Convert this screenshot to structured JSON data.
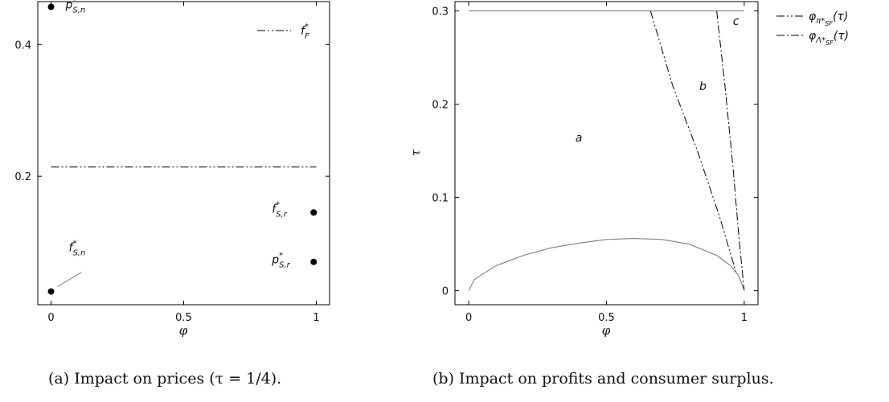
{
  "chart_data": [
    {
      "type": "scatter",
      "caption": "(a) Impact on prices (τ = 1/4).",
      "xlabel": "φ",
      "ylabel": "",
      "xlim": [
        -0.05,
        1.05
      ],
      "ylim": [
        0.005,
        0.465
      ],
      "xticks": [
        "0",
        "0.5",
        "1"
      ],
      "yticks": [
        "0.2",
        "0.4"
      ],
      "points": [
        {
          "label": "p*_{S,n}",
          "x": 0,
          "y": 0.457
        },
        {
          "label": "f*_{S,n}",
          "x": 0,
          "y": 0.025
        },
        {
          "label": "f*_{S,r}",
          "x": 0.99,
          "y": 0.145
        },
        {
          "label": "p*_{S,r}",
          "x": 0.99,
          "y": 0.07
        }
      ],
      "series": [
        {
          "name": "f*_F",
          "style": "dash-dot-dot",
          "x": [
            0,
            1
          ],
          "y": [
            0.214,
            0.214
          ]
        }
      ],
      "legend": "top-right",
      "grid": false
    },
    {
      "type": "line",
      "caption": "(b) Impact on profits and consumer surplus.",
      "xlabel": "φ",
      "ylabel": "τ",
      "xlim": [
        -0.05,
        1.05
      ],
      "ylim": [
        -0.015,
        0.31
      ],
      "xticks": [
        "0",
        "0.5",
        "1"
      ],
      "yticks": [
        "0",
        "0.1",
        "0.2",
        "0.3"
      ],
      "series": [
        {
          "name": "φ_{π*_SF}(τ)",
          "style": "dash-dot-dot",
          "x": [
            0.66,
            0.74,
            0.83,
            0.91,
            0.97
          ],
          "y": [
            0.3,
            0.22,
            0.15,
            0.08,
            0.02
          ]
        },
        {
          "name": "φ_{Λ*_SF}(τ)",
          "style": "dash-dot",
          "x": [
            0.9,
            0.93,
            0.96,
            0.98,
            1.0
          ],
          "y": [
            0.3,
            0.22,
            0.13,
            0.06,
            0.0
          ]
        },
        {
          "name": "boundary-lower",
          "style": "solid",
          "x": [
            0,
            0.02,
            0.1,
            0.2,
            0.3,
            0.4,
            0.5,
            0.6,
            0.7,
            0.8,
            0.9,
            0.95,
            0.98,
            1.0
          ],
          "y": [
            0,
            0.012,
            0.027,
            0.038,
            0.046,
            0.051,
            0.055,
            0.056,
            0.055,
            0.05,
            0.038,
            0.027,
            0.016,
            0
          ]
        },
        {
          "name": "boundary-upper",
          "style": "solid",
          "x": [
            0,
            1
          ],
          "y": [
            0.3,
            0.3
          ]
        }
      ],
      "regions": [
        {
          "label": "a",
          "x": 0.4,
          "y": 0.16
        },
        {
          "label": "b",
          "x": 0.85,
          "y": 0.215
        },
        {
          "label": "c",
          "x": 0.97,
          "y": 0.285
        }
      ],
      "legend": "outside-right",
      "grid": false
    }
  ]
}
